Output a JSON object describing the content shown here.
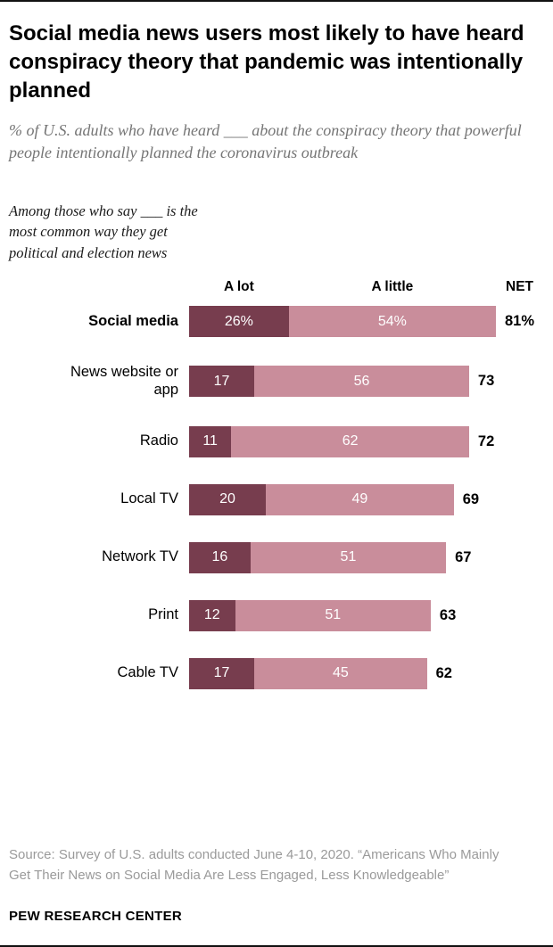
{
  "title": "Social media news users most likely to have heard conspiracy theory that pandemic was intentionally planned",
  "subtitle": "% of U.S. adults who have heard ___ about the conspiracy theory that powerful people intentionally planned the coronavirus outbreak",
  "annotation": "Among those who say ___ is the most common way they get political and election news",
  "chart_data": {
    "type": "bar",
    "orientation": "horizontal",
    "stacked": true,
    "categories": [
      "Social media",
      "News website or app",
      "Radio",
      "Local TV",
      "Network TV",
      "Print",
      "Cable TV"
    ],
    "series": [
      {
        "name": "A lot",
        "color": "#773d4e",
        "values": [
          26,
          17,
          11,
          20,
          16,
          12,
          17
        ]
      },
      {
        "name": "A little",
        "color": "#c98d9b",
        "values": [
          54,
          56,
          62,
          49,
          51,
          51,
          45
        ]
      }
    ],
    "net": {
      "label": "NET",
      "values": [
        81,
        73,
        72,
        69,
        67,
        63,
        62
      ]
    },
    "xlim": [
      0,
      81
    ],
    "first_row_value_suffix": "%",
    "legend_position": "top",
    "grid": false
  },
  "source": "Source: Survey of U.S. adults conducted June 4-10, 2020. “Americans Who Mainly Get Their News on Social Media Are Less Engaged, Less Knowledgeable”",
  "footer": "PEW RESEARCH CENTER"
}
